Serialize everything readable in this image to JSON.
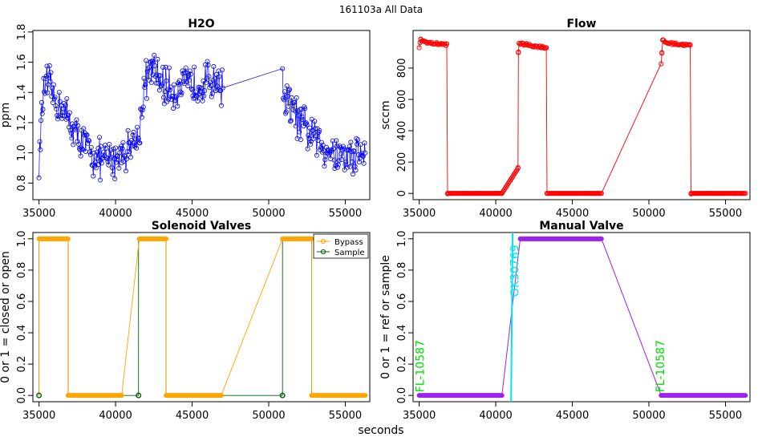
{
  "page_title": "161103a   All Data",
  "x_common_label": "seconds",
  "colors": {
    "h2o": "#0000ff",
    "flow": "#ff0000",
    "bypass": "#ffa500",
    "sample": "#006400",
    "manual": "#a020f0",
    "ok_label": "#00e5ee",
    "fl_label": "#00dd00"
  },
  "chart_data": [
    {
      "id": "h2o",
      "type": "scatter",
      "title": "H2O",
      "xlabel": "",
      "ylabel": "ppm",
      "xlim": [
        34600,
        56600
      ],
      "ylim": [
        0.69,
        1.81
      ],
      "xticks": [
        35000,
        40000,
        45000,
        50000,
        55000
      ],
      "xtick_labels": [
        "35000",
        "40000",
        "45000",
        "50000",
        "55000"
      ],
      "yticks": [
        0.8,
        1.0,
        1.2,
        1.4,
        1.6,
        1.8
      ],
      "ytick_labels": [
        "0.8",
        "1.0",
        "1.2",
        "1.4",
        "1.6",
        "1.8"
      ],
      "series": [
        {
          "name": "H2O",
          "x": [
            35000,
            35300,
            35600,
            36000,
            36500,
            37000,
            37500,
            38000,
            38500,
            39000,
            39500,
            40000,
            40400,
            41500,
            41900,
            42300,
            43000,
            43500,
            44000,
            44500,
            45000,
            45500,
            46000,
            46500,
            47000,
            50900,
            51100,
            51500,
            52000,
            52500,
            53000,
            53500,
            54000,
            54500,
            55000,
            55500,
            56000,
            56300
          ],
          "y": [
            0.95,
            1.42,
            1.45,
            1.35,
            1.3,
            1.2,
            1.1,
            1.05,
            0.98,
            0.95,
            0.95,
            0.97,
            1.0,
            1.1,
            1.45,
            1.55,
            1.47,
            1.42,
            1.42,
            1.43,
            1.45,
            1.46,
            1.48,
            1.5,
            1.43,
            1.48,
            1.35,
            1.3,
            1.2,
            1.15,
            1.1,
            1.05,
            1.02,
            1.0,
            0.97,
            0.98,
            1.0,
            1.0
          ],
          "noise": 0.1
        }
      ]
    },
    {
      "id": "flow",
      "type": "line",
      "title": "Flow",
      "xlabel": "",
      "ylabel": "sccm",
      "xlim": [
        34600,
        56600
      ],
      "ylim": [
        -40,
        1040
      ],
      "xticks": [
        35000,
        40000,
        45000,
        50000,
        55000
      ],
      "xtick_labels": [
        "35000",
        "40000",
        "45000",
        "50000",
        "55000"
      ],
      "yticks": [
        0,
        200,
        400,
        600,
        800
      ],
      "ytick_labels": [
        "0",
        "200",
        "400",
        "600",
        "800"
      ],
      "series": [
        {
          "name": "Flow",
          "x": [
            35000,
            35100,
            35300,
            35700,
            36200,
            36800,
            36850,
            38000,
            39000,
            40000,
            40400,
            41450,
            41480,
            41520,
            41600,
            42000,
            42500,
            43000,
            43300,
            43350,
            44500,
            46000,
            46900,
            50800,
            50850,
            50900,
            51200,
            51700,
            52200,
            52700,
            52750,
            54000,
            55500,
            56300
          ],
          "y": [
            930,
            980,
            970,
            960,
            955,
            950,
            0,
            0,
            0,
            0,
            0,
            160,
            900,
            960,
            955,
            950,
            940,
            935,
            930,
            0,
            0,
            0,
            0,
            830,
            900,
            975,
            960,
            955,
            950,
            945,
            0,
            0,
            0,
            0
          ]
        }
      ]
    },
    {
      "id": "solenoid",
      "type": "line",
      "title": "Solenoid Valves",
      "xlabel": "",
      "ylabel": "0 or 1 = closed or open",
      "xlim": [
        34600,
        56600
      ],
      "ylim": [
        -0.04,
        1.04
      ],
      "xticks": [
        35000,
        40000,
        45000,
        50000,
        55000
      ],
      "xtick_labels": [
        "35000",
        "40000",
        "45000",
        "50000",
        "55000"
      ],
      "yticks": [
        0.0,
        0.2,
        0.4,
        0.6,
        0.8,
        1.0
      ],
      "ytick_labels": [
        "0.0",
        "0.2",
        "0.4",
        "0.6",
        "0.8",
        "1.0"
      ],
      "legend": [
        "Bypass",
        "Sample"
      ],
      "legend_position": "top-right",
      "series": [
        {
          "name": "Bypass",
          "x": [
            35000,
            35000,
            36900,
            36900,
            40400,
            41550,
            41550,
            43300,
            43300,
            46900,
            50900,
            50900,
            52800,
            52800,
            56300
          ],
          "y": [
            0,
            1,
            1,
            0,
            0,
            1,
            1,
            1,
            0,
            0,
            1,
            1,
            1,
            0,
            0
          ]
        },
        {
          "name": "Sample",
          "x": [
            35000,
            35000,
            36900,
            36900,
            40400,
            41500,
            41500,
            43300,
            43300,
            46900,
            50900,
            50900,
            52800,
            52800,
            56300
          ],
          "y": [
            0,
            1,
            1,
            0,
            0,
            0,
            1,
            1,
            0,
            0,
            0,
            1,
            1,
            0,
            0
          ],
          "markers_x": [
            35000,
            41500,
            50900
          ],
          "markers_y": [
            0,
            0,
            0
          ]
        }
      ]
    },
    {
      "id": "manual",
      "type": "line",
      "title": "Manual Valve",
      "xlabel": "",
      "ylabel": "0 or 1 = ref or sample",
      "xlim": [
        34600,
        56600
      ],
      "ylim": [
        -0.04,
        1.04
      ],
      "xticks": [
        35000,
        40000,
        45000,
        50000,
        55000
      ],
      "xtick_labels": [
        "35000",
        "40000",
        "45000",
        "50000",
        "55000"
      ],
      "yticks": [
        0.0,
        0.2,
        0.4,
        0.6,
        0.8,
        1.0
      ],
      "ytick_labels": [
        "0.0",
        "0.2",
        "0.4",
        "0.6",
        "0.8",
        "1.0"
      ],
      "series": [
        {
          "name": "Manual",
          "x": [
            35000,
            40400,
            41600,
            46900,
            50800,
            56300
          ],
          "y": [
            0,
            0,
            1,
            1,
            0,
            0
          ]
        }
      ],
      "vline": {
        "x": 41000,
        "x_end": 41100
      },
      "annotations": [
        {
          "text": "FL-10587",
          "x": 35300,
          "y": 0.02,
          "color_key": "fl_label"
        },
        {
          "text": "OK30769",
          "x": 41500,
          "y": 0.63,
          "color_key": "ok_label"
        },
        {
          "text": "FL-10587",
          "x": 51000,
          "y": 0.02,
          "color_key": "fl_label"
        }
      ]
    }
  ]
}
